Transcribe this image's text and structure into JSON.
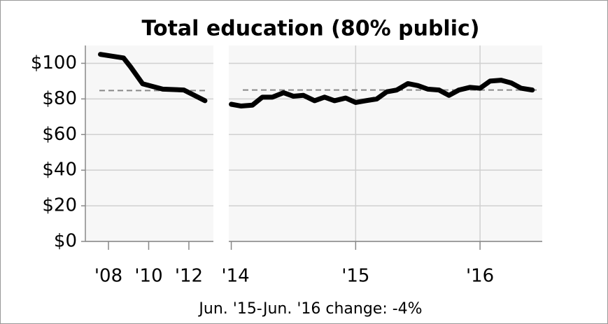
{
  "chart_data": [
    {
      "type": "line",
      "title": "Total education (80% public)",
      "color": "#000000",
      "ylim": [
        0,
        110
      ],
      "yticks": [
        {
          "value": 0,
          "label": "$0"
        },
        {
          "value": 20,
          "label": "$20"
        },
        {
          "value": 40,
          "label": "$40"
        },
        {
          "value": 60,
          "label": "$60"
        },
        {
          "value": 80,
          "label": "$80"
        },
        {
          "value": 100,
          "label": "$100"
        }
      ],
      "xlim": [
        2006.85,
        2013.22
      ],
      "xticks": [
        {
          "value": 2008,
          "label": "'08"
        },
        {
          "value": 2010,
          "label": "'10"
        },
        {
          "value": 2012,
          "label": "'12"
        }
      ],
      "x": [
        2007.6,
        2008.75,
        2009.1,
        2009.7,
        2010.7,
        2011.75,
        2012.8
      ],
      "values": [
        105,
        103,
        98,
        88.5,
        85.5,
        85,
        79
      ],
      "reference": 84.7
    },
    {
      "type": "line",
      "color": "#000000",
      "ylim": [
        0,
        110
      ],
      "xlim": [
        2013.98,
        2016.5
      ],
      "xticks": [
        {
          "value": 2014,
          "label": "'14"
        },
        {
          "value": 2015,
          "label": "'15"
        },
        {
          "value": 2016,
          "label": "'16"
        }
      ],
      "x": [
        2014.0,
        2014.08,
        2014.17,
        2014.25,
        2014.33,
        2014.42,
        2014.5,
        2014.58,
        2014.67,
        2014.75,
        2014.83,
        2014.92,
        2015.0,
        2015.08,
        2015.17,
        2015.25,
        2015.33,
        2015.42,
        2015.5,
        2015.58,
        2015.67,
        2015.75,
        2015.83,
        2015.92,
        2016.0,
        2016.08,
        2016.17,
        2016.25,
        2016.33,
        2016.42
      ],
      "values": [
        77,
        76,
        76.5,
        81,
        81,
        83.5,
        81.5,
        82,
        79,
        81,
        79,
        80.5,
        78,
        79,
        80,
        84,
        85,
        88.6,
        87.5,
        85.5,
        85,
        82,
        85,
        86.5,
        86,
        90,
        90.5,
        89,
        86,
        85
      ],
      "reference": 85,
      "note": "Jun. '15-Jun. '16 change: -4%"
    }
  ]
}
